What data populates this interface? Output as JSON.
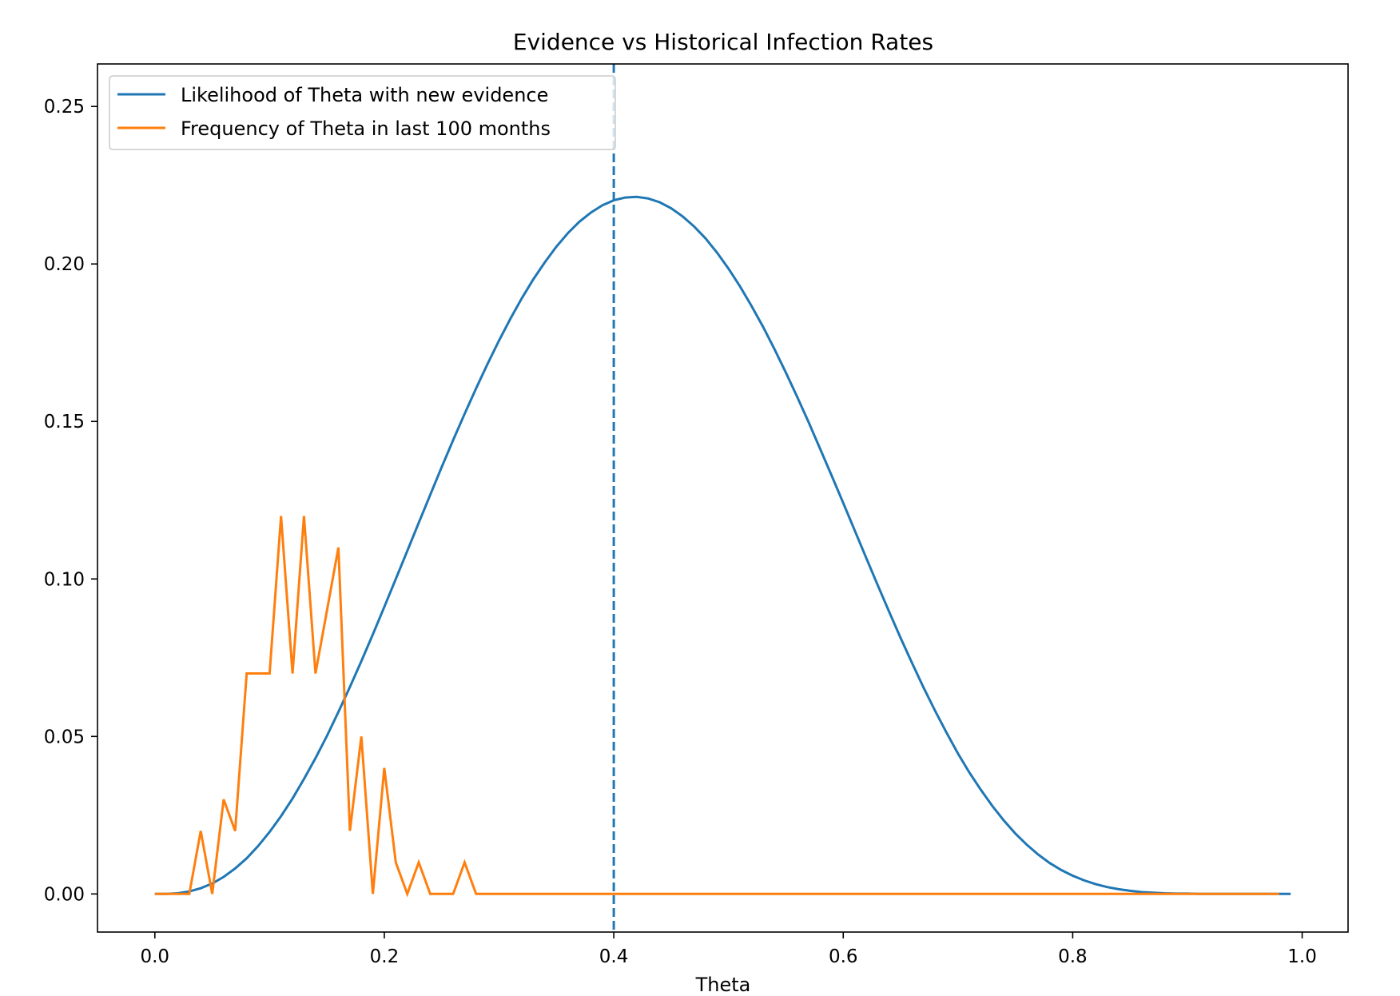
{
  "chart_data": {
    "type": "line",
    "title": "Evidence vs Historical Infection Rates",
    "xlabel": "Theta",
    "ylabel": "",
    "xlim": [
      -0.05,
      1.04
    ],
    "ylim": [
      -0.0121,
      0.2635
    ],
    "xticks": [
      0.0,
      0.2,
      0.4,
      0.6,
      0.8,
      1.0
    ],
    "xtick_labels": [
      "0.0",
      "0.2",
      "0.4",
      "0.6",
      "0.8",
      "1.0"
    ],
    "yticks": [
      0.0,
      0.05,
      0.1,
      0.15,
      0.2,
      0.25
    ],
    "ytick_labels": [
      "0.00",
      "0.05",
      "0.10",
      "0.15",
      "0.20",
      "0.25"
    ],
    "grid": false,
    "legend_position": "upper-left",
    "vline": {
      "x": 0.4,
      "style": "dashed",
      "color": "#1f77b4"
    },
    "series": [
      {
        "name": "Likelihood of Theta with new evidence",
        "color": "#1f77b4",
        "x": [
          0.0,
          0.01,
          0.02,
          0.03,
          0.04,
          0.05,
          0.06,
          0.07,
          0.08,
          0.09,
          0.1,
          0.11,
          0.12,
          0.13,
          0.14,
          0.15,
          0.16,
          0.17,
          0.18,
          0.19,
          0.2,
          0.21,
          0.22,
          0.23,
          0.24,
          0.25,
          0.26,
          0.27,
          0.28,
          0.29,
          0.3,
          0.31,
          0.32,
          0.33,
          0.34,
          0.35,
          0.36,
          0.37,
          0.38,
          0.39,
          0.4,
          0.41,
          0.42,
          0.43,
          0.44,
          0.45,
          0.46,
          0.47,
          0.48,
          0.49,
          0.5,
          0.51,
          0.52,
          0.53,
          0.54,
          0.55,
          0.56,
          0.57,
          0.58,
          0.59,
          0.6,
          0.61,
          0.62,
          0.63,
          0.64,
          0.65,
          0.66,
          0.67,
          0.68,
          0.69,
          0.7,
          0.71,
          0.72,
          0.73,
          0.74,
          0.75,
          0.76,
          0.77,
          0.78,
          0.79,
          0.8,
          0.81,
          0.82,
          0.83,
          0.84,
          0.85,
          0.86,
          0.87,
          0.88,
          0.89,
          0.9,
          0.91,
          0.92,
          0.93,
          0.94,
          0.95,
          0.96,
          0.97,
          0.98,
          0.99
        ],
        "values": [
          0.0,
          0.0,
          0.0002,
          0.0008,
          0.0018,
          0.0033,
          0.0054,
          0.0081,
          0.0113,
          0.0152,
          0.0197,
          0.0247,
          0.0303,
          0.0365,
          0.0431,
          0.0502,
          0.0578,
          0.0657,
          0.0739,
          0.0824,
          0.0911,
          0.1,
          0.1089,
          0.1178,
          0.1267,
          0.1355,
          0.1441,
          0.1524,
          0.1605,
          0.1683,
          0.1757,
          0.1827,
          0.1892,
          0.1952,
          0.2006,
          0.2055,
          0.2098,
          0.2134,
          0.2163,
          0.2186,
          0.2202,
          0.2211,
          0.2213,
          0.2208,
          0.2196,
          0.2177,
          0.2151,
          0.2119,
          0.2081,
          0.2036,
          0.1985,
          0.1929,
          0.1867,
          0.1801,
          0.173,
          0.1655,
          0.1577,
          0.1496,
          0.1412,
          0.1327,
          0.1241,
          0.1154,
          0.1067,
          0.0981,
          0.0896,
          0.0813,
          0.0733,
          0.0655,
          0.0582,
          0.0512,
          0.0446,
          0.0385,
          0.033,
          0.0279,
          0.0233,
          0.0192,
          0.0156,
          0.0125,
          0.0098,
          0.0076,
          0.0058,
          0.0043,
          0.0031,
          0.0022,
          0.0015,
          0.001,
          0.0006,
          0.0004,
          0.0002,
          0.0001,
          0.0001,
          0.0,
          0.0,
          0.0,
          0.0,
          0.0,
          0.0,
          0.0,
          0.0,
          0.0
        ]
      },
      {
        "name": "Frequency of Theta in last 100 months",
        "color": "#ff7f0e",
        "x": [
          0.0,
          0.01,
          0.02,
          0.03,
          0.04,
          0.05,
          0.06,
          0.07,
          0.08,
          0.09,
          0.1,
          0.11,
          0.12,
          0.13,
          0.14,
          0.15,
          0.16,
          0.17,
          0.18,
          0.19,
          0.2,
          0.21,
          0.22,
          0.23,
          0.24,
          0.25,
          0.26,
          0.27,
          0.28,
          0.29,
          0.3,
          0.98
        ],
        "values": [
          0.0,
          0.0,
          0.0,
          0.0,
          0.02,
          0.0,
          0.03,
          0.02,
          0.07,
          0.07,
          0.07,
          0.12,
          0.07,
          0.12,
          0.07,
          0.09,
          0.11,
          0.02,
          0.05,
          0.0,
          0.04,
          0.01,
          0.0,
          0.01,
          0.0,
          0.0,
          0.0,
          0.01,
          0.0,
          0.0,
          0.0,
          0.0
        ]
      }
    ]
  }
}
